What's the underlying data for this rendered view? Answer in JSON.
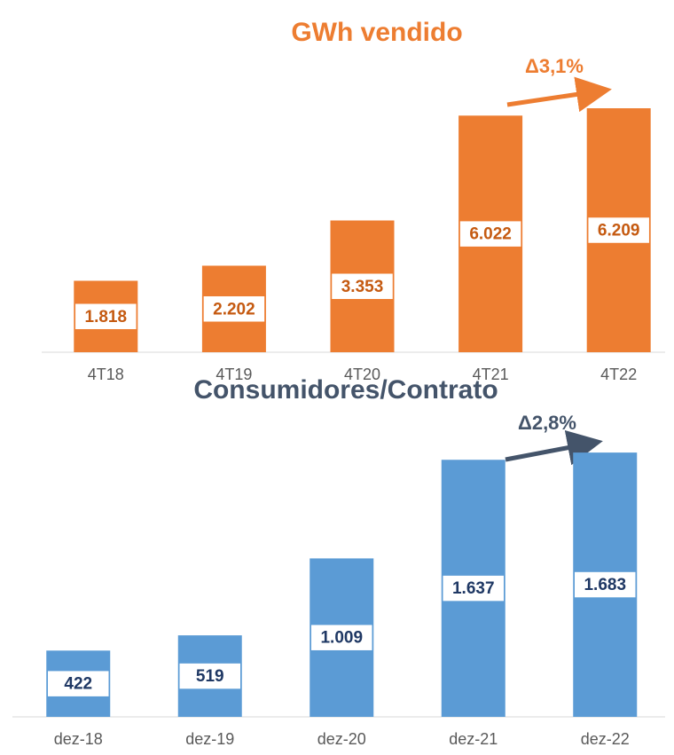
{
  "chart_data": [
    {
      "type": "bar",
      "title": "GWh vendido",
      "categories": [
        "4T18",
        "4T19",
        "4T20",
        "4T21",
        "4T22"
      ],
      "values": [
        1818,
        2202,
        3353,
        6022,
        6209
      ],
      "value_labels": [
        "1.818",
        "2.202",
        "3.353",
        "6.022",
        "6.209"
      ],
      "color": "#ED7D31",
      "label_color": "#C55A11",
      "ylim": [
        0,
        7000
      ],
      "annotation": "Δ3,1%"
    },
    {
      "type": "bar",
      "title": "Consumidores/Contrato",
      "categories": [
        "dez-18",
        "dez-19",
        "dez-20",
        "dez-21",
        "dez-22"
      ],
      "values": [
        422,
        519,
        1009,
        1637,
        1683
      ],
      "value_labels": [
        "422",
        "519",
        "1.009",
        "1.637",
        "1.683"
      ],
      "color": "#5B9BD5",
      "label_color": "#1F3864",
      "ylim": [
        0,
        2000
      ],
      "annotation": "Δ2,8%"
    }
  ]
}
